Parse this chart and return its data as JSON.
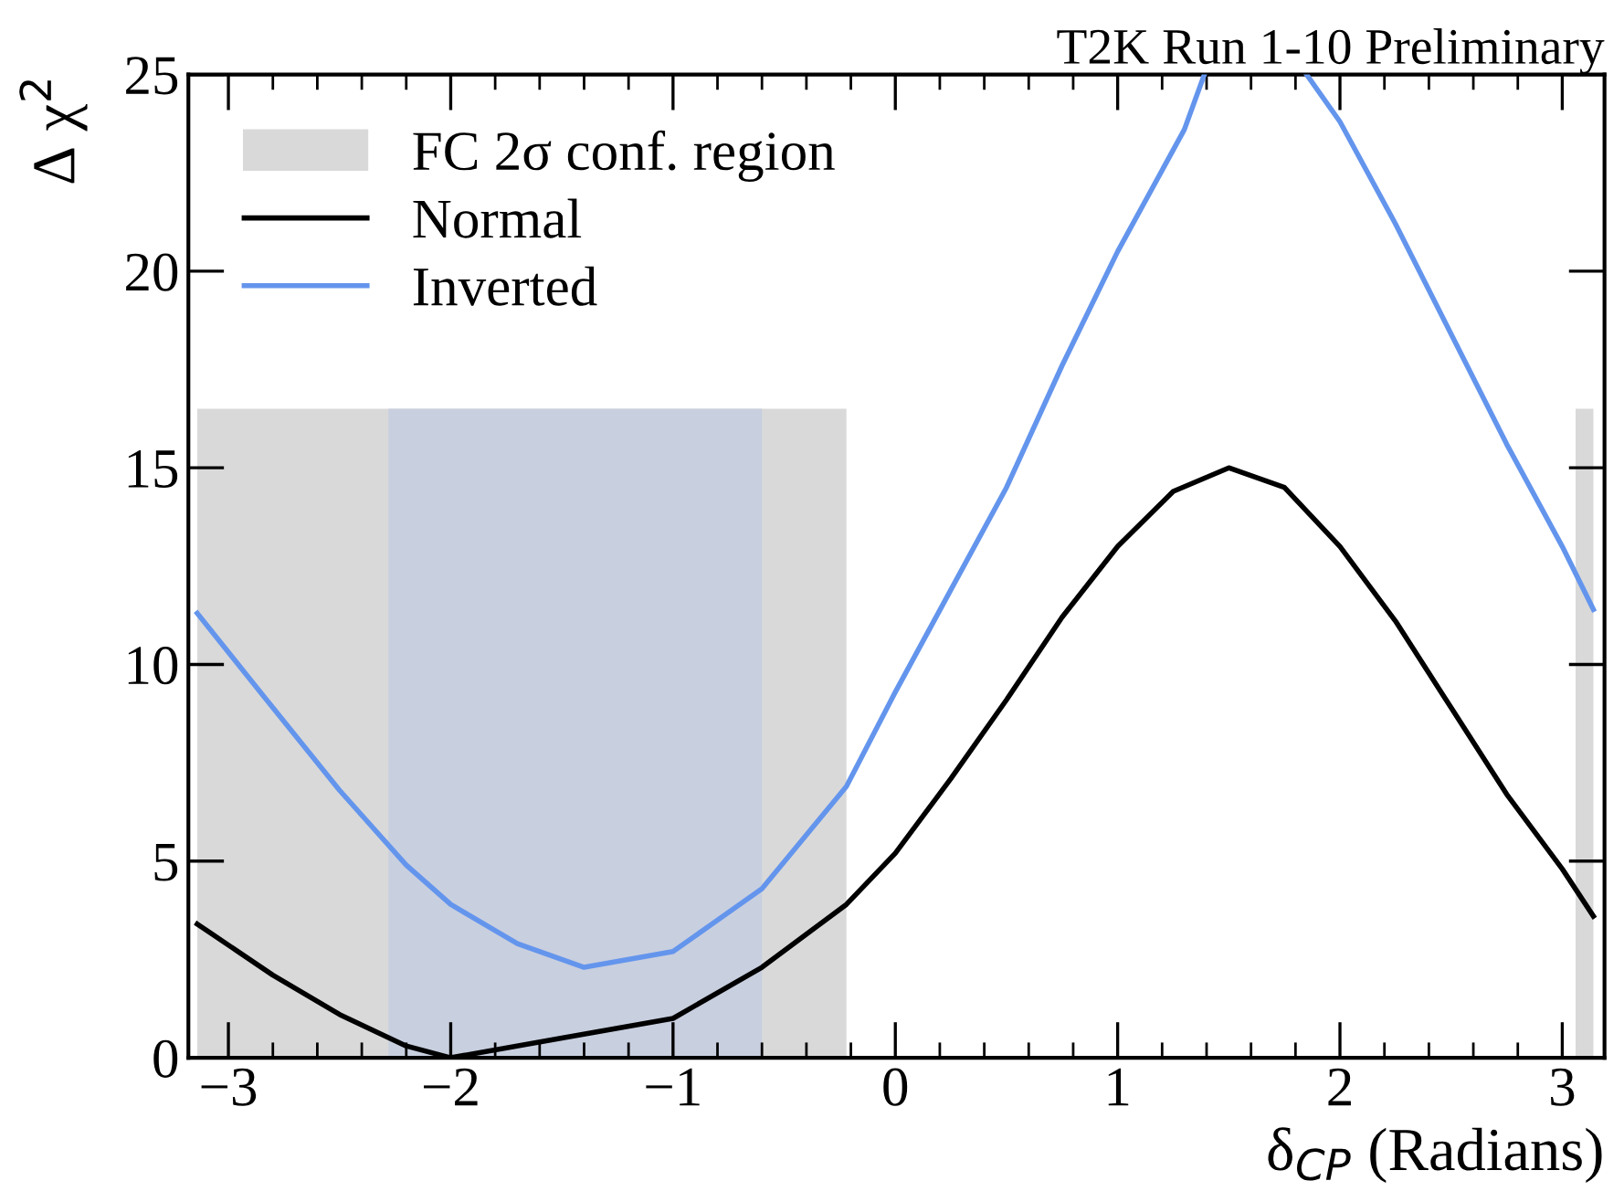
{
  "chart_data": {
    "type": "line",
    "title": "T2K Run 1-10 Preliminary",
    "xlabel": "δ$_{CP}$ (Radians)",
    "ylabel": "Δ χ$^{2}$",
    "xlim": [
      -3.18,
      3.19
    ],
    "ylim": [
      0,
      25
    ],
    "xticks": [
      -3,
      -2,
      -1,
      0,
      1,
      2,
      3
    ],
    "yticks": [
      0,
      5,
      10,
      15,
      20,
      25
    ],
    "grid": false,
    "legend": "top left",
    "line_style": "solid",
    "marker": "none",
    "series": [
      {
        "type": "area",
        "name": "FC 2σ conf. region",
        "color": "#d9d9d9",
        "x": [
          -3.14,
          -0.22
        ],
        "values": [
          16.5,
          16.5
        ]
      },
      {
        "type": "area",
        "color": "#d9d9d9",
        "x": [
          3.06,
          3.14
        ],
        "values": [
          16.5,
          16.5
        ]
      },
      {
        "type": "area",
        "color": "#c8cfdf",
        "x": [
          -2.28,
          -0.6
        ],
        "values": [
          16.5,
          16.5
        ]
      },
      {
        "name": "Normal",
        "color": "#000000",
        "x": [
          -3.14,
          -2.8,
          -2.5,
          -2.2,
          -2.0,
          -1.5,
          -1.0,
          -0.6,
          -0.22,
          0,
          0.25,
          0.5,
          0.75,
          1,
          1.25,
          1.5,
          1.75,
          2,
          2.25,
          2.5,
          2.75,
          3,
          3.14
        ],
        "values": [
          3.4,
          2.1,
          1.1,
          0.3,
          0,
          0.5,
          1.0,
          2.3,
          3.9,
          5.2,
          7.1,
          9.1,
          11.2,
          13.0,
          14.4,
          15.0,
          14.5,
          13.0,
          11.1,
          8.9,
          6.7,
          4.8,
          3.6
        ]
      },
      {
        "name": "Inverted",
        "color": "#6495ed",
        "x": [
          -3.14,
          -2.8,
          -2.5,
          -2.2,
          -2.0,
          -1.7,
          -1.4,
          -1.0,
          -0.6,
          -0.22,
          0,
          0.25,
          0.5,
          0.75,
          1,
          1.3,
          1.39,
          1.6,
          1.85,
          2,
          2.25,
          2.5,
          2.75,
          3,
          3.14
        ],
        "values": [
          11.3,
          8.9,
          6.8,
          4.9,
          3.9,
          2.9,
          2.3,
          2.7,
          4.3,
          6.9,
          9.3,
          11.9,
          14.5,
          17.6,
          20.5,
          23.6,
          25,
          null,
          25,
          23.8,
          21.2,
          18.4,
          15.6,
          13.0,
          11.4
        ]
      }
    ]
  }
}
